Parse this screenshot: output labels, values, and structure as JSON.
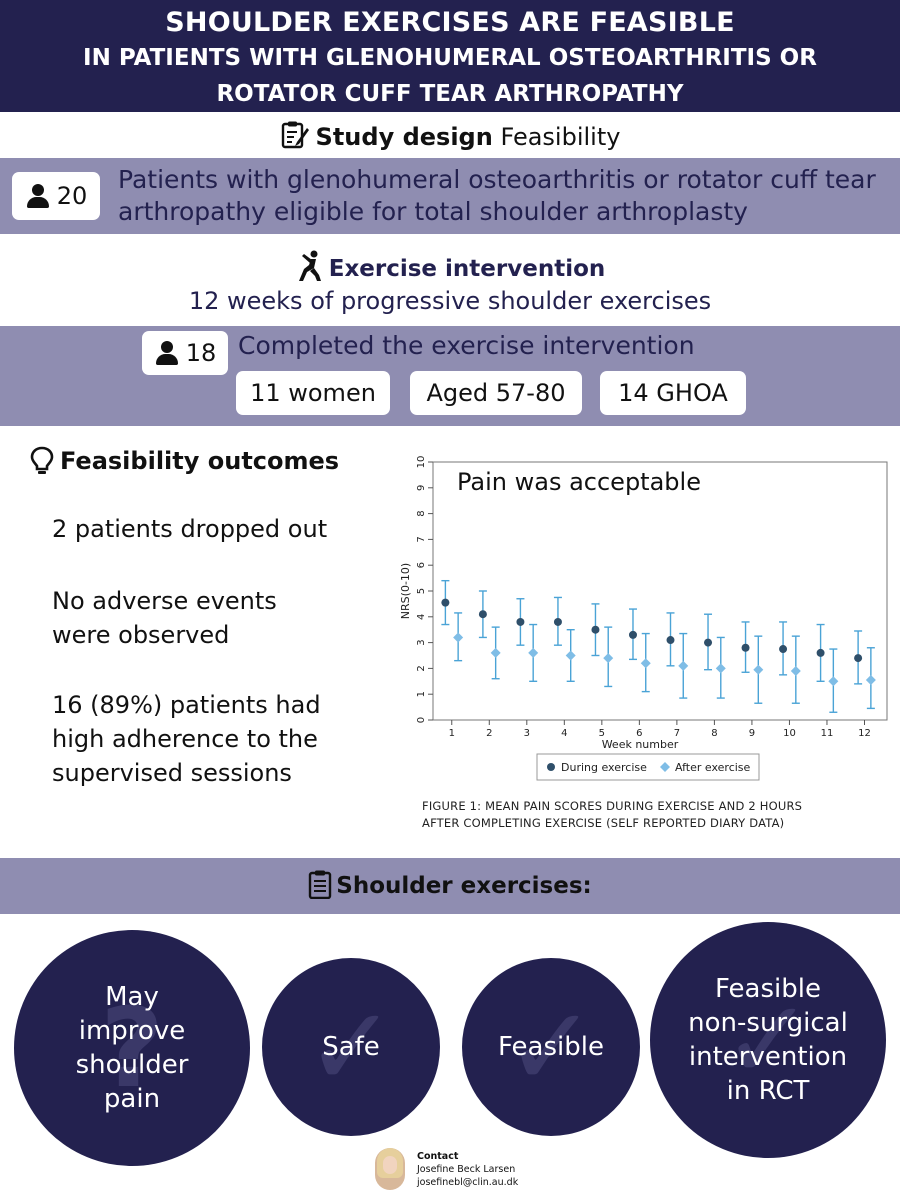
{
  "header": {
    "line1": "SHOULDER EXERCISES ARE FEASIBLE",
    "line2": "IN PATIENTS WITH GLENOHUMERAL OSTEOARTHRITIS OR",
    "line3": "ROTATOR CUFF TEAR ARTHROPATHY"
  },
  "design": {
    "label": "Study design",
    "value": "Feasibility"
  },
  "patients": {
    "count": "20",
    "line1": "Patients with glenohumeral osteoarthritis or rotator cuff tear",
    "line2": "arthropathy eligible for total shoulder arthroplasty"
  },
  "intervention": {
    "title": "Exercise intervention",
    "subtitle": "12 weeks of progressive shoulder exercises"
  },
  "completed": {
    "count": "18",
    "text": "Completed the exercise intervention",
    "chips": [
      "11 women",
      "Aged 57-80",
      "14 GHOA"
    ]
  },
  "feasibility": {
    "title": "Feasibility outcomes",
    "item1": "2 patients dropped out",
    "item2_l1": "No adverse events",
    "item2_l2": "were observed",
    "item3_l1": "16 (89%) patients had",
    "item3_l2": "high adherence to the",
    "item3_l3": "supervised sessions"
  },
  "chart_data": {
    "type": "scatter",
    "title": "Pain was acceptable",
    "xlabel": "Week number",
    "ylabel": "NRS(0-10)",
    "x": [
      1,
      2,
      3,
      4,
      5,
      6,
      7,
      8,
      9,
      10,
      11,
      12
    ],
    "ylim": [
      0,
      10
    ],
    "yticks": [
      0,
      1,
      2,
      3,
      4,
      5,
      6,
      7,
      8,
      9,
      10
    ],
    "legend_position": "bottom",
    "series": [
      {
        "name": "During exercise",
        "color": "#2f4f6a",
        "marker": "circle",
        "values": [
          4.55,
          4.1,
          3.8,
          3.8,
          3.5,
          3.3,
          3.1,
          3.0,
          2.8,
          2.75,
          2.6,
          2.4
        ],
        "lower": [
          3.7,
          3.2,
          2.9,
          2.9,
          2.5,
          2.35,
          2.1,
          1.95,
          1.85,
          1.75,
          1.5,
          1.4
        ],
        "upper": [
          5.4,
          5.0,
          4.7,
          4.75,
          4.5,
          4.3,
          4.15,
          4.1,
          3.8,
          3.8,
          3.7,
          3.45
        ]
      },
      {
        "name": "After exercise",
        "color": "#7fbde6",
        "marker": "diamond",
        "values": [
          3.2,
          2.6,
          2.6,
          2.5,
          2.4,
          2.2,
          2.1,
          2.0,
          1.95,
          1.9,
          1.5,
          1.55
        ],
        "lower": [
          2.3,
          1.6,
          1.5,
          1.5,
          1.3,
          1.1,
          0.85,
          0.85,
          0.65,
          0.65,
          0.3,
          0.45
        ],
        "upper": [
          4.15,
          3.6,
          3.7,
          3.5,
          3.6,
          3.35,
          3.35,
          3.2,
          3.25,
          3.25,
          2.75,
          2.8
        ]
      }
    ]
  },
  "caption": {
    "line1": "FIGURE 1: MEAN PAIN SCORES DURING EXERCISE AND 2 HOURS",
    "line2": "AFTER COMPLETING EXERCISE (SELF REPORTED DIARY DATA)"
  },
  "exercises": {
    "title": "Shoulder exercises:",
    "c1": [
      "May",
      "improve",
      "shoulder",
      "pain"
    ],
    "c2": "Safe",
    "c3": "Feasible",
    "c4": [
      "Feasible",
      "non-surgical",
      "intervention",
      "in RCT"
    ]
  },
  "contact": {
    "title": "Contact",
    "name": "Josefine Beck Larsen",
    "email": "josefinebl@clin.au.dk"
  },
  "icons": {
    "design": "clipboard-pen-icon",
    "person": "person-icon",
    "exercise": "exercise-figure-icon",
    "bulb": "lightbulb-icon",
    "list": "clipboard-list-icon",
    "check": "check-icon",
    "question": "question-icon"
  }
}
